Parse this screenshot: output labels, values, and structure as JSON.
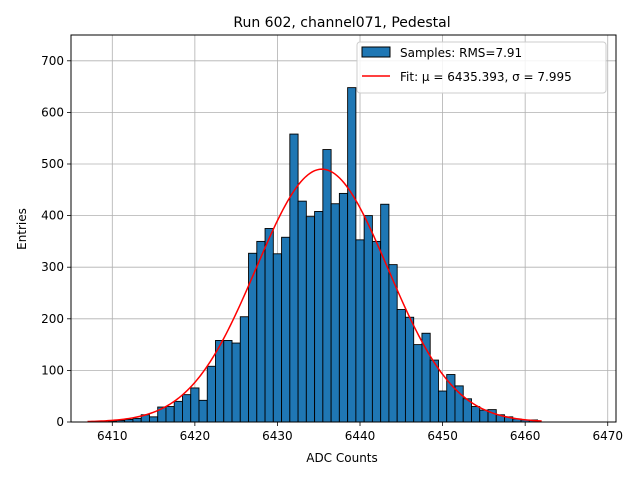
{
  "chart_data": {
    "type": "bar",
    "title": "Run 602, channel071, Pedestal",
    "xlabel": "ADC Counts",
    "ylabel": "Entries",
    "xlim": [
      6405,
      6471
    ],
    "ylim": [
      0,
      750
    ],
    "xticks": [
      6410,
      6420,
      6430,
      6440,
      6450,
      6460,
      6470
    ],
    "yticks": [
      0,
      100,
      200,
      300,
      400,
      500,
      600,
      700
    ],
    "grid": true,
    "legend_position": "top-right",
    "bin_width": 1,
    "bins_start": 6410,
    "series": [
      {
        "name": "Samples: RMS=7.91",
        "kind": "histogram",
        "color": "#1f77b4",
        "edge_color": "#000000",
        "values": [
          2,
          3,
          5,
          7,
          14,
          10,
          29,
          30,
          40,
          53,
          66,
          42,
          108,
          158,
          158,
          153,
          204,
          327,
          350,
          375,
          326,
          358,
          558,
          428,
          398,
          408,
          528,
          423,
          443,
          648,
          353,
          400,
          350,
          422,
          305,
          218,
          203,
          150,
          172,
          120,
          60,
          92,
          70,
          45,
          30,
          23,
          24,
          14,
          10,
          6,
          4,
          4
        ]
      },
      {
        "name": "Fit: μ = 6435.393, σ = 7.995",
        "kind": "gaussian",
        "color": "#ff0000",
        "mu": 6435.393,
        "sigma": 7.995,
        "amplitude": 490,
        "x_range": [
          6407,
          6462
        ]
      }
    ]
  }
}
